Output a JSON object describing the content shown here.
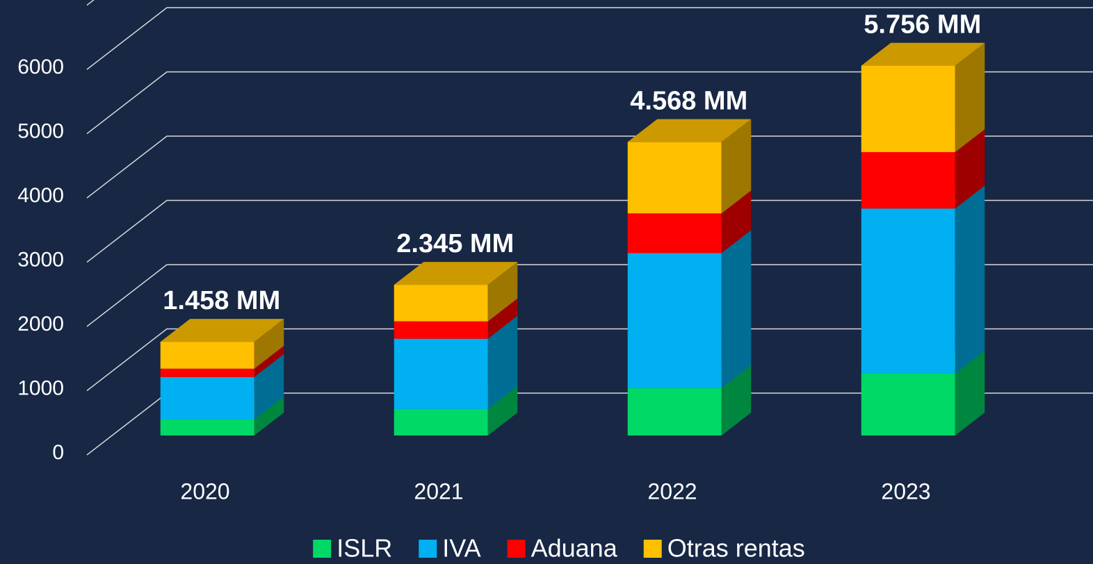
{
  "chart_data": {
    "type": "bar3d_stacked",
    "categories": [
      "2020",
      "2021",
      "2022",
      "2023"
    ],
    "series": [
      {
        "name": "ISLR",
        "color": "#00d966",
        "values": [
          250,
          412,
          737,
          964
        ]
      },
      {
        "name": "IVA",
        "color": "#00b0f0",
        "values": [
          660,
          1094,
          2102,
          2568
        ]
      },
      {
        "name": "Aduana",
        "color": "#ff0000",
        "values": [
          130,
          271,
          618,
          878
        ]
      },
      {
        "name": "Otras rentas",
        "color": "#ffc000",
        "values": [
          418,
          568,
          1111,
          1346
        ]
      }
    ],
    "totals": {
      "values": [
        1458,
        2345,
        4568,
        5756
      ],
      "value_labels": [
        "1.458 MM",
        "2.345 MM",
        "4.568 MM",
        "5.756 MM"
      ]
    },
    "ylim": [
      0,
      7000
    ],
    "yticks": [
      0,
      1000,
      2000,
      3000,
      4000,
      5000,
      6000
    ],
    "grid": true,
    "legend": "bottom"
  }
}
